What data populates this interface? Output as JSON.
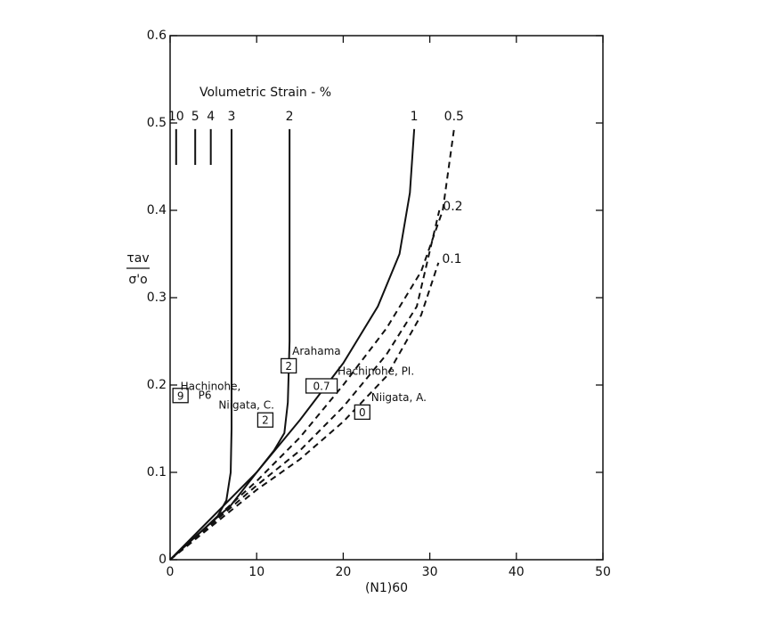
{
  "chart_data": {
    "type": "line",
    "xlabel": "(N1)60",
    "ylabel_numerator": "τav",
    "ylabel_denominator": "σ'o",
    "legend_title": "Volumetric Strain - %",
    "xlim": [
      0,
      50
    ],
    "xticks": [
      0,
      10,
      20,
      30,
      40,
      50
    ],
    "ylim": [
      0,
      0.6
    ],
    "yticks": [
      0,
      0.1,
      0.2,
      0.3,
      0.4,
      0.5,
      0.6
    ],
    "color": "#111111",
    "series": [
      {
        "name": "10",
        "dashed": false,
        "x": [
          0.7,
          0.7
        ],
        "y": [
          0.452,
          0.493
        ]
      },
      {
        "name": "5",
        "dashed": false,
        "x": [
          2.9,
          2.9
        ],
        "y": [
          0.452,
          0.493
        ]
      },
      {
        "name": "4",
        "dashed": false,
        "x": [
          4.7,
          4.7
        ],
        "y": [
          0.452,
          0.493
        ]
      },
      {
        "name": "3",
        "dashed": false,
        "x": [
          0,
          2,
          4,
          5.5,
          6.5,
          7,
          7.1,
          7.1,
          7.1
        ],
        "y": [
          0,
          0.018,
          0.036,
          0.05,
          0.068,
          0.1,
          0.15,
          0.3,
          0.493
        ]
      },
      {
        "name": "2",
        "dashed": false,
        "x": [
          0,
          4,
          7,
          10,
          12,
          13.2,
          13.6,
          13.8,
          13.8
        ],
        "y": [
          0,
          0.036,
          0.062,
          0.1,
          0.125,
          0.145,
          0.18,
          0.25,
          0.493
        ]
      },
      {
        "name": "1",
        "dashed": false,
        "x": [
          0,
          5,
          10,
          15,
          20,
          24,
          26.5,
          27.7,
          28.2
        ],
        "y": [
          0,
          0.05,
          0.1,
          0.16,
          0.225,
          0.29,
          0.35,
          0.42,
          0.493
        ]
      },
      {
        "name": "0.5",
        "dashed": true,
        "x": [
          0,
          10,
          15,
          20,
          25,
          29,
          31.5,
          32.8
        ],
        "y": [
          0,
          0.09,
          0.14,
          0.2,
          0.265,
          0.33,
          0.4,
          0.493
        ]
      },
      {
        "name": "0.2",
        "dashed": true,
        "x": [
          0,
          10,
          15,
          20,
          25,
          28.5,
          31.1
        ],
        "y": [
          0,
          0.085,
          0.125,
          0.175,
          0.235,
          0.29,
          0.4
        ]
      },
      {
        "name": "0.1",
        "dashed": true,
        "x": [
          0,
          10,
          15,
          20,
          25,
          29,
          31
        ],
        "y": [
          0,
          0.08,
          0.115,
          0.158,
          0.21,
          0.28,
          0.34
        ]
      }
    ],
    "points": [
      {
        "name": [
          "Arahama"
        ],
        "box_label": "2",
        "x": 13.7,
        "y": 0.222
      },
      {
        "name": [
          "Hachinohe, PI."
        ],
        "box_label": "0.7",
        "x": 17.5,
        "y": 0.199
      },
      {
        "name": [
          "Niigata, C."
        ],
        "box_label": "2",
        "x": 11.0,
        "y": 0.16
      },
      {
        "name": [
          "Niigata, A."
        ],
        "box_label": "0",
        "x": 22.2,
        "y": 0.169
      },
      {
        "name": [
          "Hachinohe,",
          "P6"
        ],
        "box_label": "9",
        "x": 1.2,
        "y": 0.188
      }
    ]
  }
}
